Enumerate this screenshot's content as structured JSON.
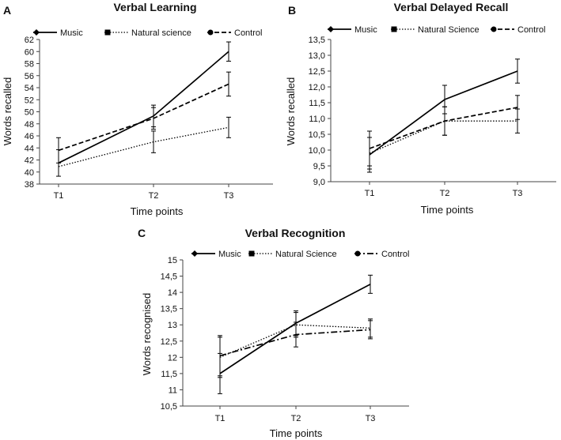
{
  "chart_data": [
    {
      "panel": "A",
      "type": "line",
      "title": "Verbal Learning",
      "xlabel": "Time points",
      "ylabel": "Words recalled",
      "categories": [
        "T1",
        "T2",
        "T3"
      ],
      "ylim": [
        38,
        62
      ],
      "yticks": [
        "38",
        "40",
        "42",
        "44",
        "46",
        "48",
        "50",
        "52",
        "54",
        "56",
        "58",
        "60",
        "62"
      ],
      "series": [
        {
          "name": "Music",
          "values": [
            41.5,
            49.3,
            60.0
          ],
          "err": [
            2.2,
            1.8,
            1.6
          ],
          "style": "solid",
          "marker": "diamond"
        },
        {
          "name": "Natural science",
          "values": [
            40.9,
            45.0,
            47.4
          ],
          "err": [
            0,
            1.8,
            1.7
          ],
          "style": "dotted",
          "marker": "square"
        },
        {
          "name": "Control",
          "values": [
            43.6,
            48.9,
            54.6
          ],
          "err": [
            2.1,
            1.8,
            2.0
          ],
          "style": "dashed",
          "marker": "circle"
        }
      ]
    },
    {
      "panel": "B",
      "type": "line",
      "title": "Verbal Delayed Recall",
      "xlabel": "Time points",
      "ylabel": "Words recalled",
      "categories": [
        "T1",
        "T2",
        "T3"
      ],
      "ylim": [
        9.0,
        13.5
      ],
      "yticks": [
        "9,0",
        "9,5",
        "10,0",
        "10,5",
        "11,0",
        "11,5",
        "12,0",
        "12,5",
        "13,0",
        "13,5"
      ],
      "series": [
        {
          "name": "Music",
          "values": [
            9.85,
            11.6,
            12.5
          ],
          "err": [
            0.55,
            0.45,
            0.38
          ],
          "style": "solid",
          "marker": "diamond"
        },
        {
          "name": "Natural Science",
          "values": [
            9.9,
            10.92,
            10.92
          ],
          "err": [
            0.5,
            0.45,
            0.38
          ],
          "style": "dotted",
          "marker": "square"
        },
        {
          "name": "Control",
          "values": [
            10.05,
            10.92,
            11.35
          ],
          "err": [
            0.55,
            0.45,
            0.38
          ],
          "style": "dashed",
          "marker": "circle"
        }
      ]
    },
    {
      "panel": "C",
      "type": "line",
      "title": "Verbal Recognition",
      "xlabel": "Time points",
      "ylabel": "Words recognised",
      "categories": [
        "T1",
        "T2",
        "T3"
      ],
      "ylim": [
        10.5,
        15
      ],
      "yticks": [
        "10,5",
        "11",
        "11,5",
        "12",
        "12,5",
        "13",
        "13,5",
        "14",
        "14,5",
        "15"
      ],
      "series": [
        {
          "name": "Music",
          "values": [
            11.5,
            13.05,
            14.25
          ],
          "err": [
            0.62,
            0.38,
            0.28
          ],
          "style": "solid",
          "marker": "diamond"
        },
        {
          "name": "Natural Science",
          "values": [
            12.0,
            13.0,
            12.9
          ],
          "err": [
            0.62,
            0.38,
            0.28
          ],
          "style": "dotted",
          "marker": "square"
        },
        {
          "name": "Control",
          "values": [
            12.05,
            12.7,
            12.85
          ],
          "err": [
            0.62,
            0.38,
            0.28
          ],
          "style": "dashdot",
          "marker": "circle"
        }
      ]
    }
  ]
}
